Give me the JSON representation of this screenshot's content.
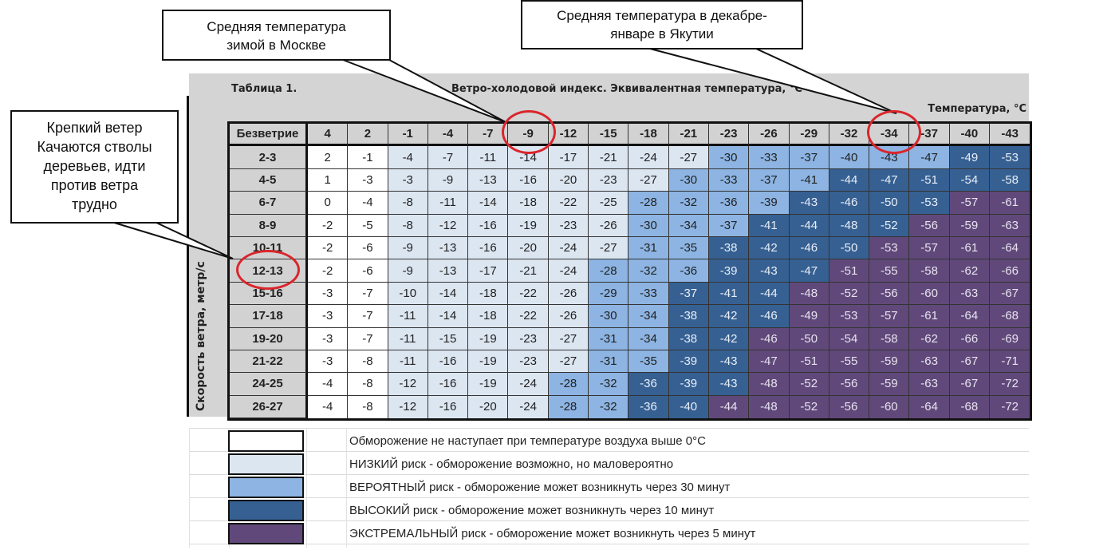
{
  "callouts": {
    "moscow": {
      "line1": "Средняя температура",
      "line2": "зимой в Москве"
    },
    "yakutia": {
      "line1": "Средняя температура в декабре-",
      "line2": "январе в Якутии"
    },
    "wind": {
      "line1": "Крепкий ветер",
      "line2": "Качаются стволы",
      "line3": "деревьев, идти",
      "line4": "против ветра",
      "line5": "трудно"
    }
  },
  "table": {
    "label": "Таблица 1.",
    "title": "Ветро-холодовой индекс. Эквивалентная температура, °С",
    "temp_axis_label": "Температура, °С",
    "wind_axis_label": "Скорость ветра, метр/с",
    "corner_label": "Безветрие"
  },
  "colors": {
    "none": "#ffffff",
    "low": "#dce6f1",
    "probable": "#8db4e2",
    "high": "#366092",
    "extreme": "#60497a",
    "highlight_circle": "#d9262c",
    "header_bg": "#d2d2d2"
  },
  "legend": [
    {
      "color": "#ffffff",
      "text": "Обморожение не наступает при  температуре воздуха выше 0°С"
    },
    {
      "color": "#dce6f1",
      "text": "НИЗКИЙ риск - обморожение возможно, но маловероятно"
    },
    {
      "color": "#8db4e2",
      "text": "ВЕРОЯТНЫЙ риск - обморожение может возникнуть через 30 минут"
    },
    {
      "color": "#366092",
      "text": "ВЫСОКИЙ риск - обморожение может возникнуть через 10 минут"
    },
    {
      "color": "#60497a",
      "text": "ЭКСТРЕМАЛЬНЫЙ риск - обморожение может возникнуть через 5 минут"
    }
  ],
  "chart_data": {
    "type": "heatmap",
    "title": "Ветро-холодовой индекс. Эквивалентная температура, °С",
    "subtitle": "Таблица 1.",
    "xlabel": "Температура, °С",
    "ylabel": "Скорость ветра, метр/с",
    "x": [
      "4",
      "2",
      "-1",
      "-4",
      "-7",
      "-9",
      "-12",
      "-15",
      "-18",
      "-21",
      "-23",
      "-26",
      "-29",
      "-32",
      "-34",
      "-37",
      "-40",
      "-43"
    ],
    "y": [
      "2-3",
      "4-5",
      "6-7",
      "8-9",
      "10-11",
      "12-13",
      "15-16",
      "17-18",
      "19-20",
      "21-22",
      "24-25",
      "26-27"
    ],
    "values": [
      [
        2,
        -1,
        -4,
        -7,
        -11,
        -14,
        -17,
        -21,
        -24,
        -27,
        -30,
        -33,
        -37,
        -40,
        -43,
        -47,
        -49,
        -53
      ],
      [
        1,
        -3,
        -3,
        -9,
        -13,
        -16,
        -20,
        -23,
        -27,
        -30,
        -33,
        -37,
        -41,
        -44,
        -47,
        -51,
        -54,
        -58
      ],
      [
        0,
        -4,
        -8,
        -11,
        -14,
        -18,
        -22,
        -25,
        -28,
        -32,
        -36,
        -39,
        -43,
        -46,
        -50,
        -53,
        -57,
        -61
      ],
      [
        -2,
        -5,
        -8,
        -12,
        -16,
        -19,
        -23,
        -26,
        -30,
        -34,
        -37,
        -41,
        -44,
        -48,
        -52,
        -56,
        -59,
        -63
      ],
      [
        -2,
        -6,
        -9,
        -13,
        -16,
        -20,
        -24,
        -27,
        -31,
        -35,
        -38,
        -42,
        -46,
        -50,
        -53,
        -57,
        -61,
        -64
      ],
      [
        -2,
        -6,
        -9,
        -13,
        -17,
        -21,
        -24,
        -28,
        -32,
        -36,
        -39,
        -43,
        -47,
        -51,
        -55,
        -58,
        -62,
        -66
      ],
      [
        -3,
        -7,
        -10,
        -14,
        -18,
        -22,
        -26,
        -29,
        -33,
        -37,
        -41,
        -44,
        -48,
        -52,
        -56,
        -60,
        -63,
        -67
      ],
      [
        -3,
        -7,
        -11,
        -14,
        -18,
        -22,
        -26,
        -30,
        -34,
        -38,
        -42,
        -46,
        -49,
        -53,
        -57,
        -61,
        -64,
        -68
      ],
      [
        -3,
        -7,
        -11,
        -15,
        -19,
        -23,
        -27,
        -31,
        -34,
        -38,
        -42,
        -46,
        -50,
        -54,
        -58,
        -62,
        -66,
        -69
      ],
      [
        -3,
        -8,
        -11,
        -16,
        -19,
        -23,
        -27,
        -31,
        -35,
        -39,
        -43,
        -47,
        -51,
        -55,
        -59,
        -63,
        -67,
        -71
      ],
      [
        -4,
        -8,
        -12,
        -16,
        -19,
        -24,
        -28,
        -32,
        -36,
        -39,
        -43,
        -48,
        -52,
        -56,
        -59,
        -63,
        -67,
        -72
      ],
      [
        -4,
        -8,
        -12,
        -16,
        -20,
        -24,
        -28,
        -32,
        -36,
        -40,
        -44,
        -48,
        -52,
        -56,
        -60,
        -64,
        -68,
        -72
      ]
    ],
    "risk_levels": [
      "none",
      "low",
      "probable",
      "high",
      "extreme"
    ],
    "risk": [
      [
        0,
        0,
        1,
        1,
        1,
        1,
        1,
        1,
        1,
        1,
        2,
        2,
        2,
        2,
        2,
        2,
        3,
        3
      ],
      [
        0,
        0,
        1,
        1,
        1,
        1,
        1,
        1,
        1,
        2,
        2,
        2,
        2,
        3,
        3,
        3,
        3,
        3
      ],
      [
        0,
        0,
        1,
        1,
        1,
        1,
        1,
        1,
        2,
        2,
        2,
        2,
        3,
        3,
        3,
        3,
        4,
        4
      ],
      [
        0,
        0,
        1,
        1,
        1,
        1,
        1,
        1,
        2,
        2,
        2,
        3,
        3,
        3,
        3,
        4,
        4,
        4
      ],
      [
        0,
        0,
        1,
        1,
        1,
        1,
        1,
        1,
        2,
        2,
        3,
        3,
        3,
        3,
        4,
        4,
        4,
        4
      ],
      [
        0,
        0,
        1,
        1,
        1,
        1,
        1,
        2,
        2,
        2,
        3,
        3,
        3,
        4,
        4,
        4,
        4,
        4
      ],
      [
        0,
        0,
        1,
        1,
        1,
        1,
        1,
        2,
        2,
        3,
        3,
        3,
        4,
        4,
        4,
        4,
        4,
        4
      ],
      [
        0,
        0,
        1,
        1,
        1,
        1,
        1,
        2,
        2,
        3,
        3,
        3,
        4,
        4,
        4,
        4,
        4,
        4
      ],
      [
        0,
        0,
        1,
        1,
        1,
        1,
        1,
        2,
        2,
        3,
        3,
        4,
        4,
        4,
        4,
        4,
        4,
        4
      ],
      [
        0,
        0,
        1,
        1,
        1,
        1,
        1,
        2,
        2,
        3,
        3,
        4,
        4,
        4,
        4,
        4,
        4,
        4
      ],
      [
        0,
        0,
        1,
        1,
        1,
        1,
        2,
        2,
        3,
        3,
        3,
        4,
        4,
        4,
        4,
        4,
        4,
        4
      ],
      [
        0,
        0,
        1,
        1,
        1,
        1,
        2,
        2,
        3,
        3,
        4,
        4,
        4,
        4,
        4,
        4,
        4,
        4
      ]
    ],
    "annotations": [
      {
        "target_column": "-9",
        "text": "Средняя температура зимой в Москве"
      },
      {
        "target_column": "-34",
        "text": "Средняя температура в декабре-январе в Якутии"
      },
      {
        "target_row": "12-13",
        "text": "Крепкий ветер Качаются стволы деревьев, идти против ветра трудно"
      }
    ]
  }
}
